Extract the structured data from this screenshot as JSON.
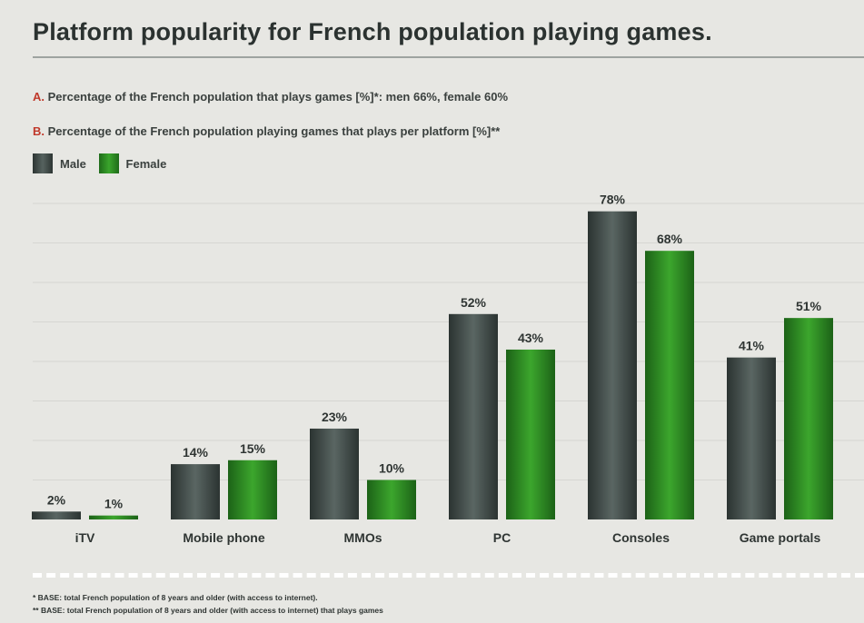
{
  "title": "Platform popularity for French population playing games.",
  "subtitle_a": {
    "letter": "A.",
    "text": "Percentage of the French population that plays games [%]*: men 66%, female 60%"
  },
  "subtitle_b": {
    "letter": "B.",
    "text": "Percentage of the French population playing games that plays per platform [%]**"
  },
  "legend": {
    "male": "Male",
    "female": "Female"
  },
  "colors": {
    "male": "#3d4644",
    "female": "#2f8f25",
    "accent_letter": "#c0392b"
  },
  "chart_data": {
    "type": "bar",
    "categories": [
      "iTV",
      "Mobile phone",
      "MMOs",
      "PC",
      "Consoles",
      "Game portals"
    ],
    "series": [
      {
        "name": "Male",
        "values": [
          2,
          14,
          23,
          52,
          78,
          41
        ],
        "labels": [
          "2%",
          "14%",
          "23%",
          "52%",
          "78%",
          "41%"
        ]
      },
      {
        "name": "Female",
        "values": [
          1,
          15,
          10,
          43,
          68,
          51
        ],
        "labels": [
          "1%",
          "15%",
          "10%",
          "43%",
          "68%",
          "51%"
        ]
      }
    ],
    "ylim": [
      0,
      100
    ],
    "grid": true,
    "legend_position": "top-left"
  },
  "footnotes": [
    "* BASE: total French population of 8 years and older (with access to internet).",
    "** BASE: total French population of 8 years and older (with access to  internet) that plays games"
  ]
}
